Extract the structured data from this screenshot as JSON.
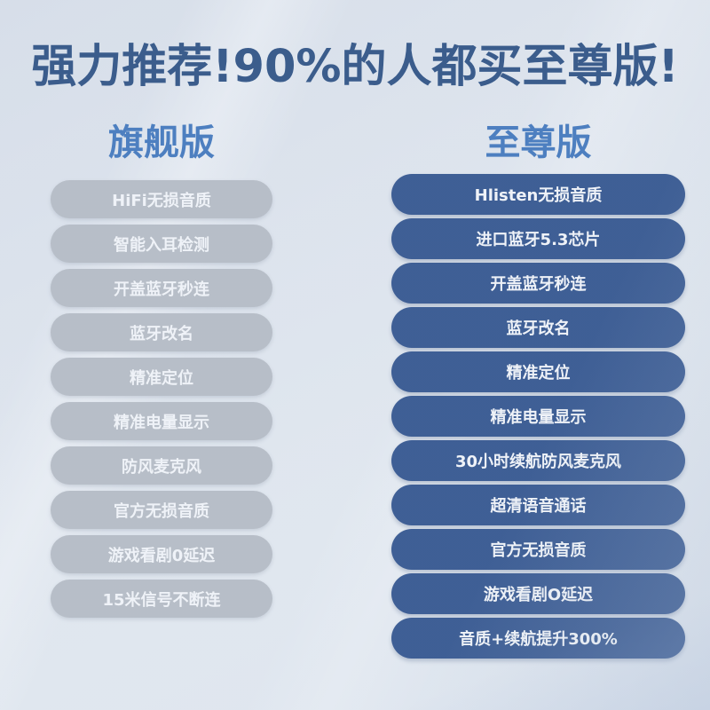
{
  "title": "强力推荐!90%的人都买至尊版!",
  "colors": {
    "title": "#0f3770",
    "header": "#2765b5",
    "flagship_pill": "#b5b9bf",
    "supreme_pill": "#143a7c",
    "pill_text": "#ffffff",
    "background_top": "#dfe4ec",
    "background_bottom": "#ecf0f4"
  },
  "flagship": {
    "header": "旗舰版",
    "items": [
      "HiFi无损音质",
      "智能入耳检测",
      "开盖蓝牙秒连",
      "蓝牙改名",
      "精准定位",
      "精准电量显示",
      "防风麦克风",
      "官方无损音质",
      "游戏看剧0延迟",
      "15米信号不断连"
    ]
  },
  "supreme": {
    "header": "至尊版",
    "items": [
      "Hlisten无损音质",
      "进口蓝牙5.3芯片",
      "开盖蓝牙秒连",
      "蓝牙改名",
      "精准定位",
      "精准电量显示",
      "30小时续航防风麦克风",
      "超清语音通话",
      "官方无损音质",
      "游戏看剧O延迟",
      "音质+续航提升300%"
    ]
  }
}
